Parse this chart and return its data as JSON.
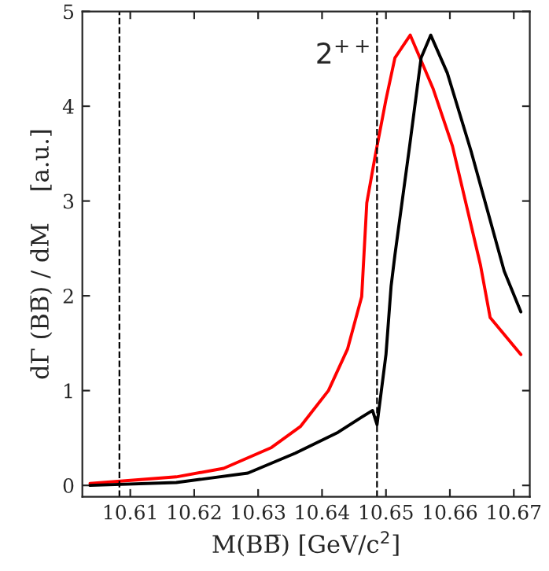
{
  "chart_data": {
    "type": "line",
    "xlabel": "M(BB̅) [GeV/c$^{2}$]",
    "ylabel": "dΓ (BB̅) / dM    [a.u.]",
    "xlim": [
      10.6025,
      10.6725
    ],
    "ylim": [
      -0.12,
      5
    ],
    "xticks": [
      10.61,
      10.62,
      10.63,
      10.64,
      10.65,
      10.66,
      10.67
    ],
    "yticks": [
      0,
      1,
      2,
      3,
      4,
      5
    ],
    "grid": false,
    "legend": false,
    "line_style": "solid",
    "marker": "none",
    "ref_lines": [
      {
        "axis": "x",
        "value": 10.6083,
        "color": "#000000",
        "line_style": "dashed"
      },
      {
        "axis": "x",
        "value": 10.6486,
        "color": "#000000",
        "line_style": "dashed"
      }
    ],
    "annotations": [
      "2$^{++}$"
    ],
    "series": [
      {
        "color": "#ff0000",
        "x": [
          10.6037,
          10.6172,
          10.6246,
          10.6321,
          10.6366,
          10.641,
          10.644,
          10.6462,
          10.647,
          10.6483,
          10.65,
          10.6514,
          10.6538,
          10.6574,
          10.6604,
          10.6648,
          10.6663,
          10.6711
        ],
        "values": [
          0.02,
          0.09,
          0.18,
          0.4,
          0.62,
          1.0,
          1.44,
          1.99,
          2.98,
          3.47,
          4.07,
          4.51,
          4.75,
          4.18,
          3.58,
          2.32,
          1.77,
          1.38
        ]
      },
      {
        "color": "#000000",
        "x": [
          10.6037,
          10.6172,
          10.6284,
          10.6358,
          10.6425,
          10.6462,
          10.6479,
          10.6486,
          10.65,
          10.6508,
          10.6514,
          10.6537,
          10.6555,
          10.657,
          10.6596,
          10.6633,
          10.6685,
          10.6711
        ],
        "values": [
          0.0,
          0.03,
          0.13,
          0.34,
          0.56,
          0.72,
          0.79,
          0.64,
          1.38,
          2.1,
          2.43,
          3.58,
          4.51,
          4.75,
          4.35,
          3.53,
          2.26,
          1.83
        ]
      }
    ]
  }
}
